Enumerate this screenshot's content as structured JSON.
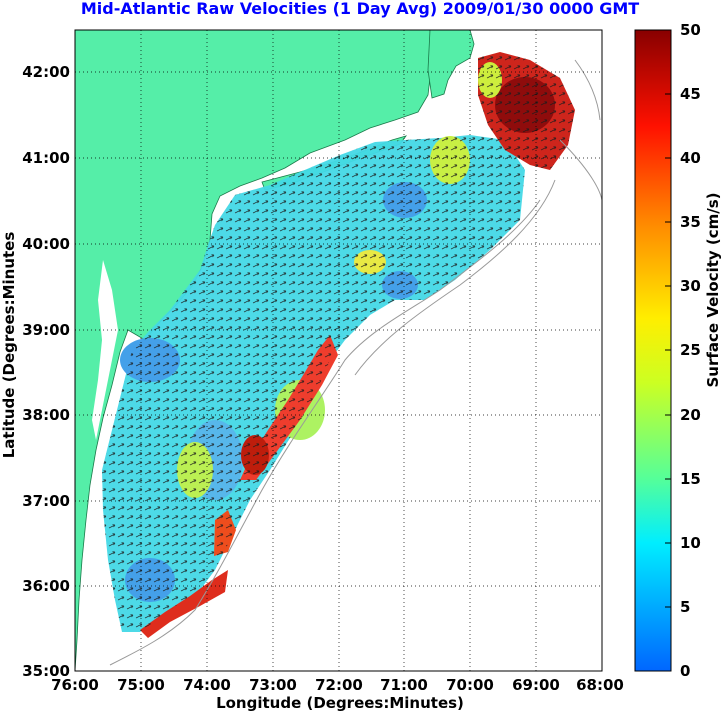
{
  "title": "Mid-Atlantic Raw Velocities (1 Day Avg) 2009/01/30 0000 GMT",
  "xlabel": "Longitude (Degrees:Minutes)",
  "ylabel": "Latitude (Degrees:Minutes",
  "x_ticks": [
    "76:00",
    "75:00",
    "74:00",
    "73:00",
    "72:00",
    "71:00",
    "70:00",
    "69:00",
    "68:00"
  ],
  "y_ticks": [
    "42:00",
    "41:00",
    "40:00",
    "39:00",
    "38:00",
    "37:00",
    "36:00",
    "35:00"
  ],
  "colorbar": {
    "label": "Surface Velocity (cm/s)",
    "ticks": [
      "50",
      "45",
      "40",
      "35",
      "30",
      "25",
      "20",
      "15",
      "10",
      "5",
      "0"
    ],
    "range": [
      0,
      50
    ]
  },
  "colors": {
    "land": "#55eea8",
    "water": "#ffffff",
    "title": "#0000ff",
    "grid": "#000000"
  },
  "map_extent": {
    "lon": [
      -76,
      -68
    ],
    "lat": [
      35,
      42.5
    ]
  }
}
